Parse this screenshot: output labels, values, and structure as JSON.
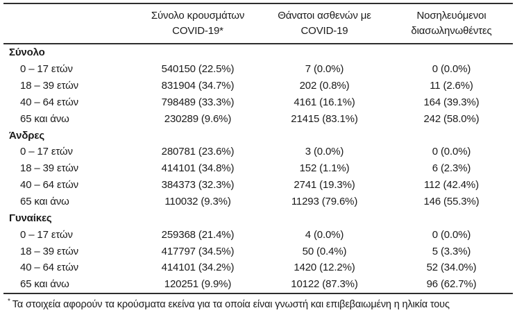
{
  "page": {
    "background_color": "#ffffff",
    "text_color": "#1a1a1a",
    "rule_color": "#2e2e2e"
  },
  "table": {
    "header": {
      "columns": [
        {
          "line1": "Σύνολο κρουσμάτων",
          "line2": "COVID-19*"
        },
        {
          "line1": "Θάνατοι ασθενών με",
          "line2": "COVID-19"
        },
        {
          "line1": "Νοσηλευόμενοι",
          "line2": "διασωληνωθέντες"
        }
      ]
    },
    "groups": [
      {
        "label": "Σύνολο",
        "rows": [
          {
            "age": "0 – 17 ετών",
            "cases": "540150 (22.5%)",
            "deaths": "7 (0.0%)",
            "intubated": "0 (0.0%)"
          },
          {
            "age": "18 – 39 ετών",
            "cases": "831904 (34.7%)",
            "deaths": "202 (0.8%)",
            "intubated": "11 (2.6%)"
          },
          {
            "age": "40 – 64 ετών",
            "cases": "798489 (33.3%)",
            "deaths": "4161 (16.1%)",
            "intubated": "164 (39.3%)"
          },
          {
            "age": "65 και άνω",
            "cases": "230289 (9.6%)",
            "deaths": "21415 (83.1%)",
            "intubated": "242 (58.0%)"
          }
        ]
      },
      {
        "label": "Άνδρες",
        "rows": [
          {
            "age": "0 – 17 ετών",
            "cases": "280781 (23.6%)",
            "deaths": "3 (0.0%)",
            "intubated": "0 (0.0%)"
          },
          {
            "age": "18 – 39 ετών",
            "cases": "414101 (34.8%)",
            "deaths": "152 (1.1%)",
            "intubated": "6 (2.3%)"
          },
          {
            "age": "40 – 64 ετών",
            "cases": "384373 (32.3%)",
            "deaths": "2741 (19.3%)",
            "intubated": "112 (42.4%)"
          },
          {
            "age": "65 και άνω",
            "cases": "110032 (9.3%)",
            "deaths": "11293 (79.6%)",
            "intubated": "146 (55.3%)"
          }
        ]
      },
      {
        "label": "Γυναίκες",
        "rows": [
          {
            "age": "0 – 17 ετών",
            "cases": "259368 (21.4%)",
            "deaths": "4 (0.0%)",
            "intubated": "0 (0.0%)"
          },
          {
            "age": "18 – 39 ετών",
            "cases": "417797 (34.5%)",
            "deaths": "50 (0.4%)",
            "intubated": "5 (3.3%)"
          },
          {
            "age": "40 – 64 ετών",
            "cases": "414101 (34.2%)",
            "deaths": "1420 (12.2%)",
            "intubated": "52 (34.0%)"
          },
          {
            "age": "65 και άνω",
            "cases": "120251 (9.9%)",
            "deaths": "10122 (87.3%)",
            "intubated": "96 (62.7%)"
          }
        ]
      }
    ],
    "footnote": {
      "marker": "*",
      "text": "Τα στοιχεία αφορούν τα κρούσματα εκείνα για τα οποία είναι γνωστή και επιβεβαιωμένη η ηλικία τους"
    }
  }
}
